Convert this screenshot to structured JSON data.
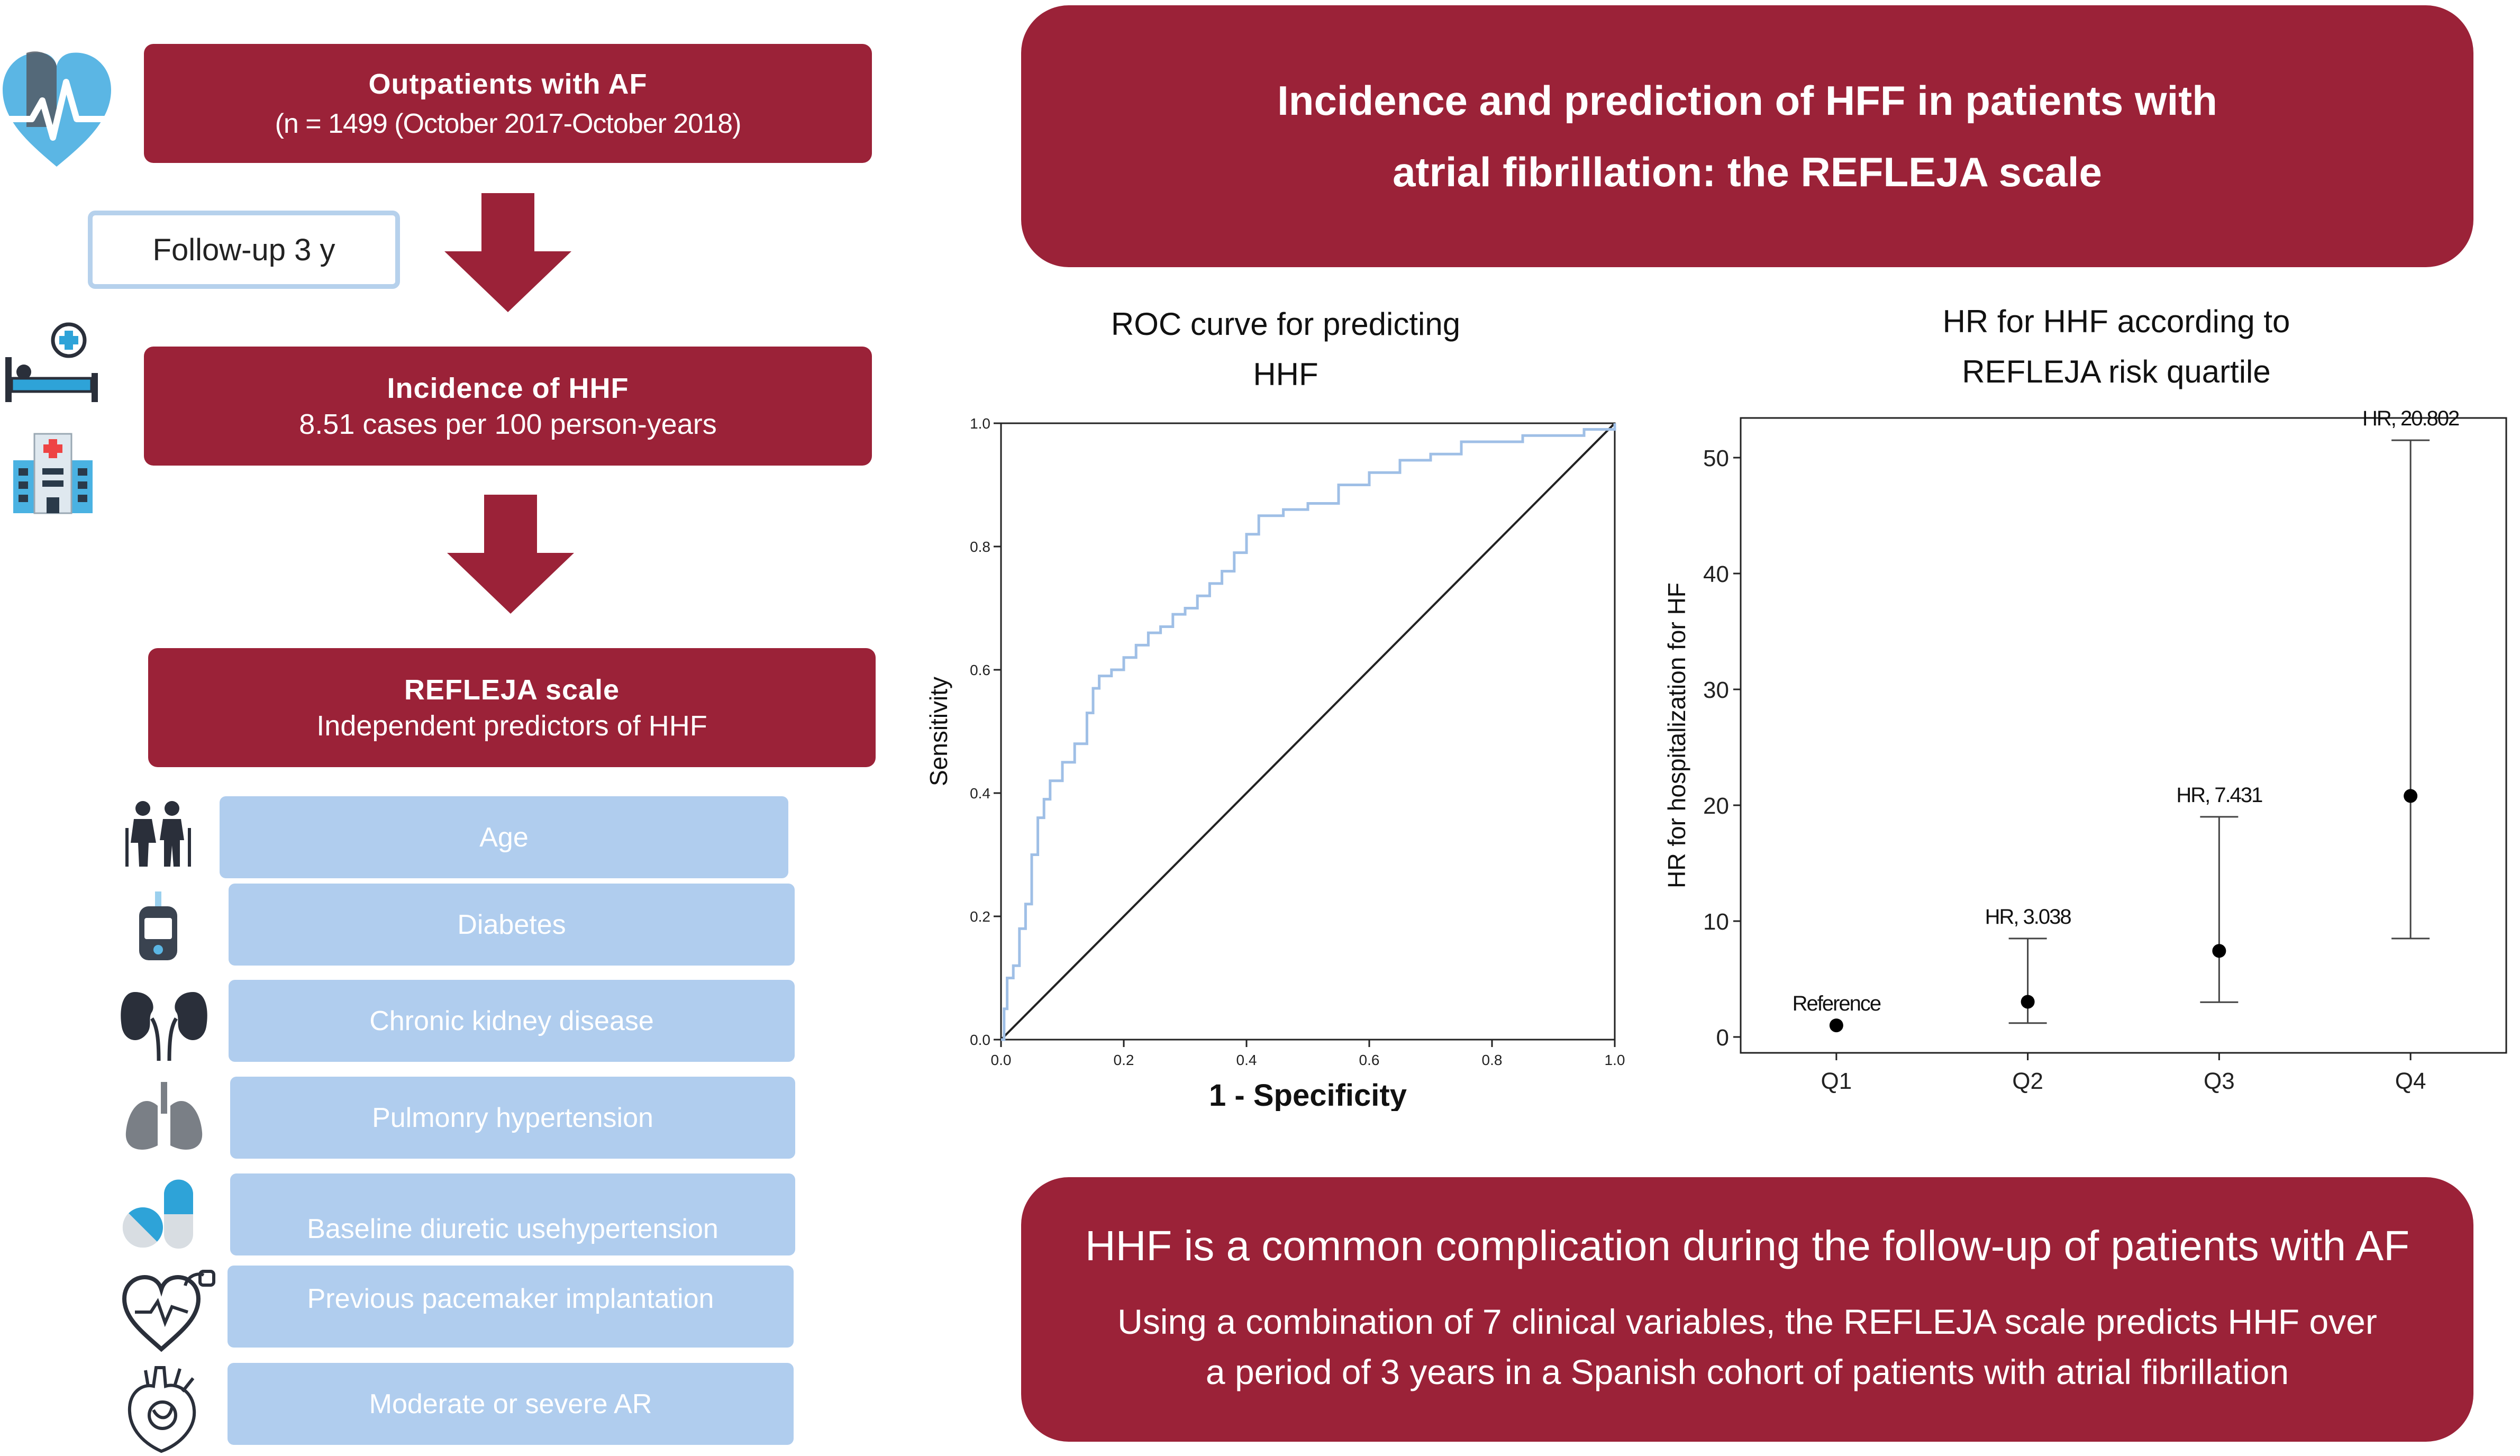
{
  "flow": {
    "outpatients": {
      "title": "Outpatients with AF",
      "subtitle": "(n = 1499 (October 2017-October 2018)"
    },
    "followup": "Follow-up 3 y",
    "incidence": {
      "title": "Incidence of HHF",
      "subtitle": "8.51 cases per 100 person-years"
    },
    "refleja": {
      "title": "REFLEJA scale",
      "subtitle": "Independent predictors of HHF"
    },
    "predictors": [
      "Age",
      "Diabetes",
      "Chronic kidney disease",
      "Pulmonry hypertension",
      "Baseline diuretic usehypertension",
      "Previous pacemaker implantation",
      "Moderate or severe AR"
    ]
  },
  "header": {
    "line1": "Incidence and prediction of HFF in patients with",
    "line2": "atrial fibrillation: the REFLEJA scale"
  },
  "conclusion": {
    "headline": "HHF is a common complication during the follow-up of patients with AF",
    "line1": "Using a combination of 7 clinical variables, the REFLEJA scale predicts HHF over",
    "line2": "a period of 3 years in a Spanish cohort of patients with atrial fibrillation"
  },
  "colors": {
    "primary": "#9b2238",
    "predictor_fill": "#b0cdee",
    "roc_curve": "#9fbfe6",
    "followup_border": "#b6d1ec"
  },
  "icons": [
    "heart-pulse-icon",
    "hospital-bed-icon",
    "hospital-building-icon",
    "elderly-couple-icon",
    "glucose-meter-icon",
    "kidneys-icon",
    "lungs-icon",
    "pills-icon",
    "pacemaker-heart-icon",
    "anatomical-heart-icon"
  ],
  "chart_data": [
    {
      "type": "line",
      "title_line1": "ROC curve for predicting",
      "title_line2": "HHF",
      "xlabel": "1 - Specificity",
      "ylabel": "Sensitivity",
      "xlim": [
        0,
        1
      ],
      "ylim": [
        0,
        1
      ],
      "xticks": [
        "0.0",
        "0.2",
        "0.4",
        "0.6",
        "0.8",
        "1.0"
      ],
      "yticks": [
        "0.0",
        "0.2",
        "0.4",
        "0.6",
        "0.8",
        "1.0"
      ],
      "grid": false,
      "series": [
        {
          "x": [
            0,
            0.005,
            0.01,
            0.02,
            0.03,
            0.04,
            0.05,
            0.06,
            0.07,
            0.08,
            0.1,
            0.12,
            0.14,
            0.15,
            0.16,
            0.18,
            0.2,
            0.22,
            0.24,
            0.26,
            0.28,
            0.3,
            0.32,
            0.34,
            0.36,
            0.38,
            0.4,
            0.42,
            0.44,
            0.46,
            0.5,
            0.55,
            0.6,
            0.65,
            0.7,
            0.75,
            0.8,
            0.85,
            0.9,
            0.95,
            1.0
          ],
          "y": [
            0,
            0.05,
            0.1,
            0.12,
            0.18,
            0.22,
            0.3,
            0.36,
            0.39,
            0.42,
            0.45,
            0.48,
            0.53,
            0.57,
            0.59,
            0.6,
            0.62,
            0.64,
            0.66,
            0.67,
            0.69,
            0.7,
            0.72,
            0.74,
            0.76,
            0.79,
            0.82,
            0.85,
            0.85,
            0.86,
            0.87,
            0.9,
            0.92,
            0.94,
            0.95,
            0.97,
            0.97,
            0.98,
            0.98,
            0.99,
            1.0
          ]
        },
        {
          "x": [
            0,
            1
          ],
          "y": [
            0,
            1
          ]
        }
      ]
    },
    {
      "type": "scatter",
      "title_line1": "HR for HHF according to",
      "title_line2": "REFLEJA risk quartile",
      "ylabel": "HR for hospitalization for HF",
      "categories": [
        "Q1",
        "Q2",
        "Q3",
        "Q4"
      ],
      "ylim": [
        0,
        50
      ],
      "yticks": [
        "0",
        "10",
        "20",
        "30",
        "40",
        "50"
      ],
      "values": [
        1,
        3.038,
        7.431,
        20.802
      ],
      "ci_low": [
        null,
        1.2,
        3.0,
        8.5
      ],
      "ci_high": [
        null,
        8.5,
        19.0,
        51.5
      ],
      "labels": [
        "Reference",
        "HR, 3.038",
        "HR, 7.431",
        "HR, 20.802"
      ],
      "grid": false
    }
  ]
}
